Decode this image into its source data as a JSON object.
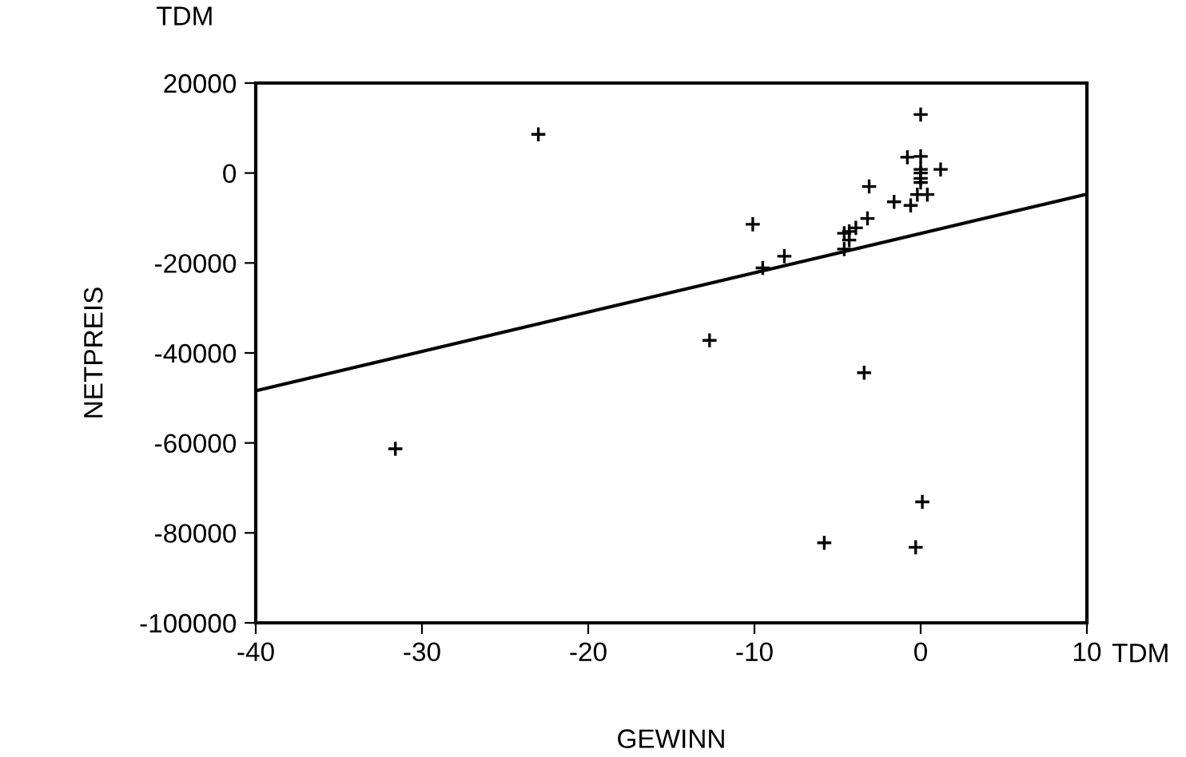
{
  "chart_data": {
    "type": "scatter",
    "xlabel": "GEWINN",
    "ylabel": "NETPREIS",
    "annotations": [
      "TDM",
      "TDM"
    ],
    "xlim": [
      -40,
      10
    ],
    "xticks": [
      -40,
      -30,
      -20,
      -10,
      0,
      10
    ],
    "ylim": [
      -100000,
      20000
    ],
    "yticks": [
      -100000,
      -80000,
      -60000,
      -40000,
      -20000,
      0,
      20000
    ],
    "grid": false,
    "legend": false,
    "series": [
      {
        "marker": "cross",
        "color": "#000000",
        "x": [
          0,
          -0.8,
          0,
          0,
          1.2,
          0,
          0,
          0,
          -0.2,
          0.4,
          -3.1,
          -1.6,
          -0.6,
          -3.2,
          -10.1,
          -3.9,
          -4.3,
          -4.6,
          -4.3,
          -4.6,
          -8.2,
          -9.5,
          -23,
          -31.6,
          -5.8,
          0.1,
          -0.3,
          -12.7,
          -3.4
        ],
        "values": [
          13000,
          3500,
          3700,
          800,
          800,
          0,
          -1200,
          -2100,
          -4800,
          -4800,
          -3000,
          -6400,
          -7200,
          -10100,
          -11400,
          -12200,
          -13000,
          -13400,
          -14900,
          -16900,
          -18500,
          -21100,
          8600,
          -61300,
          -82200,
          -73100,
          -83200,
          -37200,
          -44400
        ]
      },
      {
        "type": "line",
        "marker": "none",
        "line_style": "solid",
        "color": "#000000",
        "x": [
          -40,
          10
        ],
        "values": [
          -48400,
          -4700
        ]
      }
    ]
  }
}
